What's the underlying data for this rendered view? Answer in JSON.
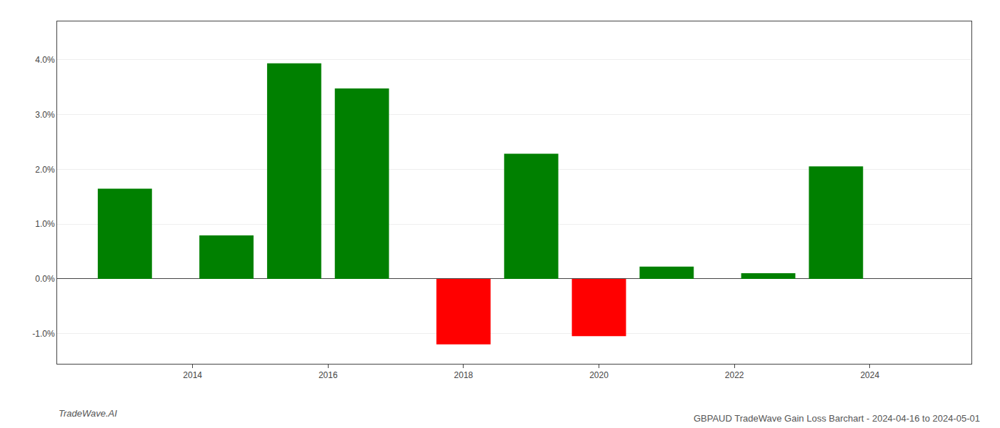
{
  "chart_data": {
    "type": "bar",
    "title": "GBPAUD TradeWave Gain Loss Barchart - 2024-04-16 to 2024-05-01",
    "annotations": [
      {
        "text": "TradeWave.AI"
      }
    ],
    "x": [
      2013.0,
      2014.5,
      2015.5,
      2016.5,
      2018.0,
      2019.0,
      2020.0,
      2021.0,
      2022.5,
      2023.5
    ],
    "values": [
      0.01648,
      0.00795,
      0.03935,
      0.03475,
      -0.01195,
      0.02285,
      -0.01045,
      0.00225,
      0.00105,
      0.02055
    ],
    "colors": [
      "#008000",
      "#008000",
      "#008000",
      "#008000",
      "#ff0000",
      "#008000",
      "#ff0000",
      "#008000",
      "#008000",
      "#008000"
    ],
    "xlim": [
      2012.0,
      2025.5
    ],
    "xticks": [
      2014,
      2016,
      2018,
      2020,
      2022,
      2024
    ],
    "ylim": [
      -0.0155,
      0.047
    ],
    "yticks": [
      {
        "value": -0.01,
        "label": "-1.0%"
      },
      {
        "value": 0.0,
        "label": "0.0%"
      },
      {
        "value": 0.01,
        "label": "1.0%"
      },
      {
        "value": 0.02,
        "label": "2.0%"
      },
      {
        "value": 0.03,
        "label": "3.0%"
      },
      {
        "value": 0.04,
        "label": "4.0%"
      }
    ],
    "grid": true
  }
}
